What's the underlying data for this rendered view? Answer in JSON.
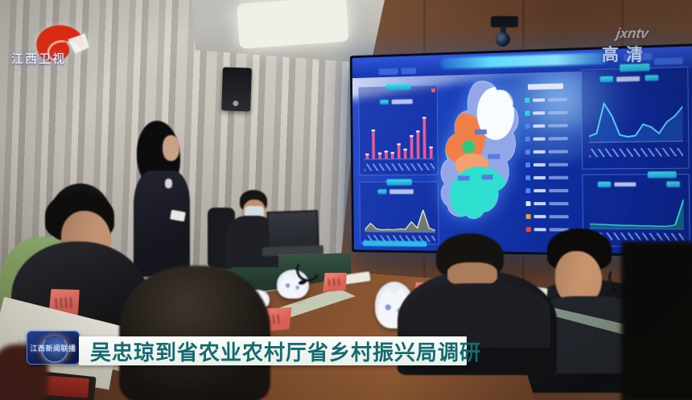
{
  "broadcast": {
    "channel_logo": "江西卫视",
    "watermark": {
      "line1": "jxntv",
      "line2": "高清"
    },
    "caption": {
      "badge": "江西新闻联播",
      "text": "吴忠琼到省农业农村厅省乡村振兴局调研"
    }
  },
  "screen": {
    "chart_data": [
      {
        "id": "bars-main",
        "type": "bar",
        "ymax": 100,
        "color": "#e85a9a",
        "values": [
          8,
          62,
          10,
          14,
          11,
          30,
          18,
          48,
          58,
          88,
          22
        ]
      },
      {
        "id": "area-left",
        "type": "area",
        "ymax": 100,
        "stroke": "#eceec8",
        "fill": "#a8a858",
        "values": [
          6,
          30,
          10,
          6,
          8,
          7,
          10,
          9,
          36,
          14,
          80,
          14,
          6
        ]
      },
      {
        "id": "line-right",
        "type": "area",
        "ymax": 100,
        "stroke": "#58d8f8",
        "fill": "#1c55b8",
        "values": [
          12,
          18,
          82,
          55,
          14,
          10,
          12,
          36,
          30,
          16,
          40,
          52,
          72
        ]
      },
      {
        "id": "spike-right",
        "type": "area",
        "ymax": 100,
        "stroke": "#40e0d8",
        "fill": "#128888",
        "values": [
          14,
          13,
          12,
          11,
          10,
          10,
          9,
          9,
          8,
          8,
          12,
          92
        ]
      }
    ],
    "rank_list": {
      "row_colors": [
        "#2fd8e0",
        "#2fd8e0",
        "#4a8af0",
        "#4a8af0",
        "#4a8af0",
        "#4a8af0",
        "#4a8af0",
        "#4a8af0",
        "#e0e4f0",
        "#f0a030",
        "#e05030"
      ]
    },
    "map_palette": {
      "base": "#93a7e6",
      "northwest": "#f08048",
      "northeast": "#f8fbff",
      "south": "#2fe0d0",
      "center_spot": "#2fc87c"
    },
    "accent": "#35e0e8",
    "background": "#10309d"
  }
}
